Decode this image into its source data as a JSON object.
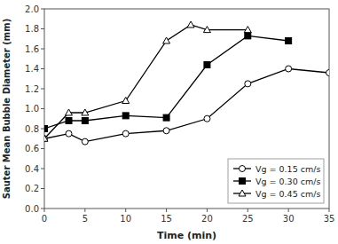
{
  "chart_data": {
    "type": "line",
    "xlabel": "Time (min)",
    "ylabel": "Sauter Mean Bubble Diameter (mm)",
    "series": [
      {
        "name": "Vg = 0.15 cm/s",
        "color": "black",
        "marker": "circle-open",
        "x": [
          0,
          3,
          5,
          10,
          15,
          20,
          25,
          30,
          35
        ],
        "values": [
          0.7,
          0.75,
          0.67,
          0.75,
          0.78,
          0.9,
          1.25,
          1.4,
          1.36
        ]
      },
      {
        "name": "Vg = 0.30 cm/s",
        "color": "black",
        "marker": "square",
        "x": [
          0,
          3,
          5,
          10,
          15,
          20,
          25,
          30
        ],
        "values": [
          0.8,
          0.88,
          0.88,
          0.93,
          0.91,
          1.44,
          1.73,
          1.68
        ]
      },
      {
        "name": "Vg = 0.45 cm/s",
        "color": "black",
        "marker": "triangle-open",
        "x": [
          0,
          3,
          5,
          10,
          15,
          18,
          20,
          25
        ],
        "values": [
          0.7,
          0.96,
          0.96,
          1.08,
          1.68,
          1.84,
          1.79,
          1.79
        ]
      }
    ],
    "xlim": [
      0,
      35
    ],
    "ylim": [
      0.0,
      2.0
    ],
    "xticks": [
      0,
      5,
      10,
      15,
      20,
      25,
      30,
      35
    ],
    "yticks": [
      {
        "value": 0.0,
        "label": "0.0"
      },
      0.2,
      0.4,
      0.6,
      0.8,
      {
        "value": 1.0,
        "label": "1.0"
      },
      1.2,
      1.4,
      1.6,
      1.8,
      {
        "value": 2.0,
        "label": "2.0"
      }
    ],
    "grid": false,
    "legend": "lower right"
  }
}
